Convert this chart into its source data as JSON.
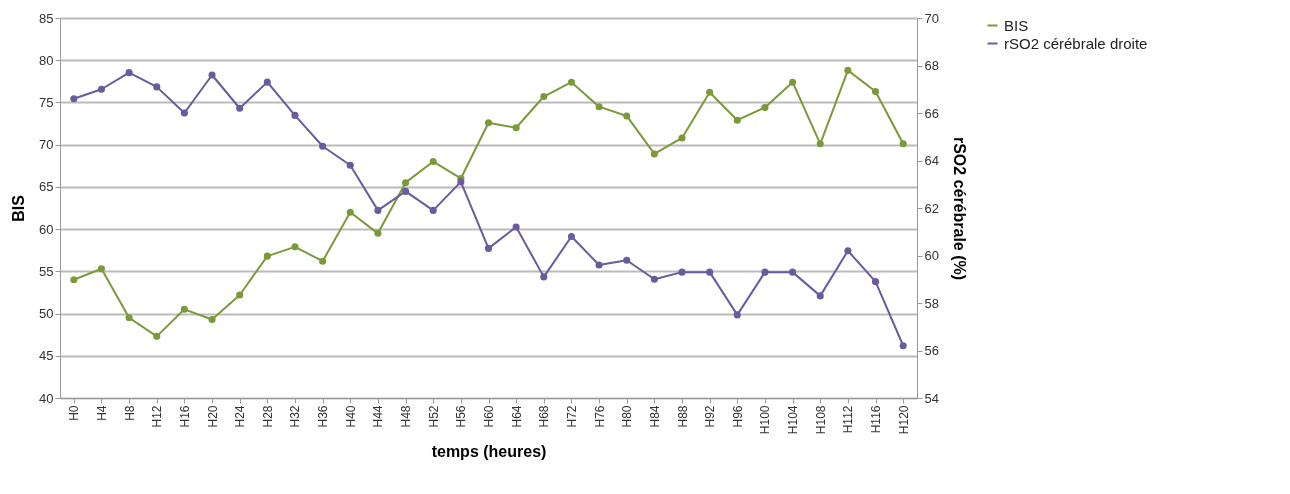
{
  "chart_data": {
    "type": "line",
    "xlabel": "temps (heures)",
    "ylabel": "BIS",
    "y2label": "rSO2 cérébrale (%)",
    "categories": [
      "H0",
      "H4",
      "H8",
      "H12",
      "H16",
      "H20",
      "H24",
      "H28",
      "H32",
      "H36",
      "H40",
      "H44",
      "H48",
      "H52",
      "H56",
      "H60",
      "H64",
      "H68",
      "H72",
      "H76",
      "H80",
      "H84",
      "H88",
      "H92",
      "H96",
      "H100",
      "H104",
      "H108",
      "H112",
      "H116",
      "H120"
    ],
    "series": [
      {
        "name": "BIS",
        "color": "#7a9a3a",
        "values": [
          54,
          55.3,
          49.5,
          47.3,
          50.5,
          49.3,
          52.2,
          56.8,
          57.9,
          56.2,
          62,
          59.5,
          65.5,
          68,
          66,
          72.6,
          72,
          75.7,
          77.4,
          74.5,
          73.4,
          68.9,
          70.8,
          76.2,
          72.9,
          74.4,
          77.4,
          70.1,
          78.8,
          76.3,
          70.1
        ]
      },
      {
        "name": "rSO2 cérébrale droite",
        "color": "#6a5a9e",
        "axis": "y2",
        "values": [
          66.6,
          67.0,
          67.7,
          67.1,
          66.0,
          67.6,
          66.2,
          67.3,
          65.9,
          64.6,
          63.8,
          61.9,
          62.7,
          61.9,
          63.1,
          60.3,
          61.2,
          59.1,
          60.8,
          59.6,
          59.8,
          59.0,
          59.3,
          59.3,
          57.5,
          59.3,
          59.3,
          58.3,
          60.2,
          58.9,
          56.2
        ]
      }
    ],
    "ylim": [
      40,
      85
    ],
    "yticks": [
      40,
      45,
      50,
      55,
      60,
      65,
      70,
      75,
      80,
      85
    ],
    "y2lim": [
      54,
      70
    ],
    "y2ticks": [
      54,
      56,
      58,
      60,
      62,
      64,
      66,
      68,
      70
    ],
    "grid": "y",
    "legend": "right",
    "marker": "circle",
    "line_style": "solid"
  }
}
